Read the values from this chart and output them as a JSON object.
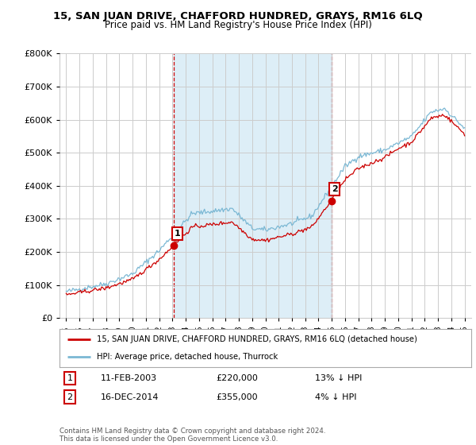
{
  "title": "15, SAN JUAN DRIVE, CHAFFORD HUNDRED, GRAYS, RM16 6LQ",
  "subtitle": "Price paid vs. HM Land Registry's House Price Index (HPI)",
  "legend_line1": "15, SAN JUAN DRIVE, CHAFFORD HUNDRED, GRAYS, RM16 6LQ (detached house)",
  "legend_line2": "HPI: Average price, detached house, Thurrock",
  "annotation1_date": "11-FEB-2003",
  "annotation1_price": "£220,000",
  "annotation1_hpi": "13% ↓ HPI",
  "annotation2_date": "16-DEC-2014",
  "annotation2_price": "£355,000",
  "annotation2_hpi": "4% ↓ HPI",
  "footer": "Contains HM Land Registry data © Crown copyright and database right 2024.\nThis data is licensed under the Open Government Licence v3.0.",
  "hpi_color": "#7bb8d4",
  "price_color": "#cc0000",
  "shade_color": "#ddeef7",
  "grid_color": "#cccccc",
  "background_color": "#ffffff",
  "ylim": [
    0,
    800000
  ],
  "yticks": [
    0,
    100000,
    200000,
    300000,
    400000,
    500000,
    600000,
    700000,
    800000
  ],
  "sale1_year": 2003.1,
  "sale1_price": 220000,
  "sale2_year": 2014.96,
  "sale2_price": 355000,
  "xmin": 1994.5,
  "xmax": 2025.5
}
